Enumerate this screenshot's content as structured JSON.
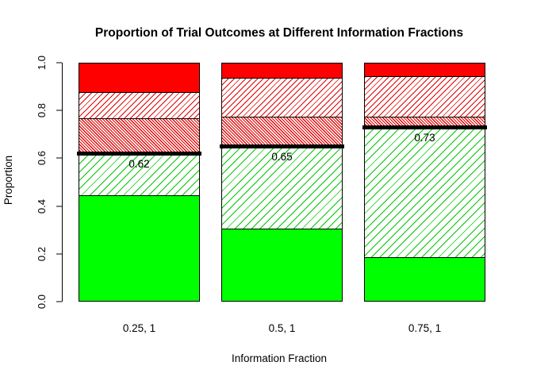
{
  "title": "Proportion of Trial Outcomes at Different Information Fractions",
  "axes": {
    "y_label": "Proportion",
    "x_label": "Information Fraction",
    "y_ticks": [
      "0.0",
      "0.2",
      "0.4",
      "0.6",
      "0.8",
      "1.0"
    ]
  },
  "colors": {
    "green": "#00FF00",
    "red": "#FF0000",
    "threshold_line": "#000000",
    "segment_border": "#000000"
  },
  "chart_data": {
    "type": "bar",
    "stacked": true,
    "title": "Proportion of Trial Outcomes at Different Information Fractions",
    "xlabel": "Information Fraction",
    "ylabel": "Proportion",
    "ylim": [
      0,
      1
    ],
    "grid": false,
    "legend": "none",
    "categories": [
      "0.25, 1",
      "0.5, 1",
      "0.75, 1"
    ],
    "series": [
      {
        "name": "green-solid",
        "style": "green-solid",
        "values": [
          0.445,
          0.305,
          0.185
        ]
      },
      {
        "name": "green-hatched",
        "style": "green-hatch",
        "values": [
          0.175,
          0.34,
          0.545
        ]
      },
      {
        "name": "red-dense-hatched",
        "style": "red-dense-hatch",
        "values": [
          0.15,
          0.13,
          0.045
        ]
      },
      {
        "name": "red-hatched",
        "style": "red-hatch",
        "values": [
          0.11,
          0.165,
          0.17
        ]
      },
      {
        "name": "red-solid",
        "style": "red-solid",
        "values": [
          0.12,
          0.06,
          0.055
        ]
      }
    ],
    "threshold_lines": [
      {
        "category": "0.25, 1",
        "value": 0.62,
        "label": "0.62"
      },
      {
        "category": "0.5, 1",
        "value": 0.65,
        "label": "0.65"
      },
      {
        "category": "0.75, 1",
        "value": 0.73,
        "label": "0.73"
      }
    ]
  }
}
